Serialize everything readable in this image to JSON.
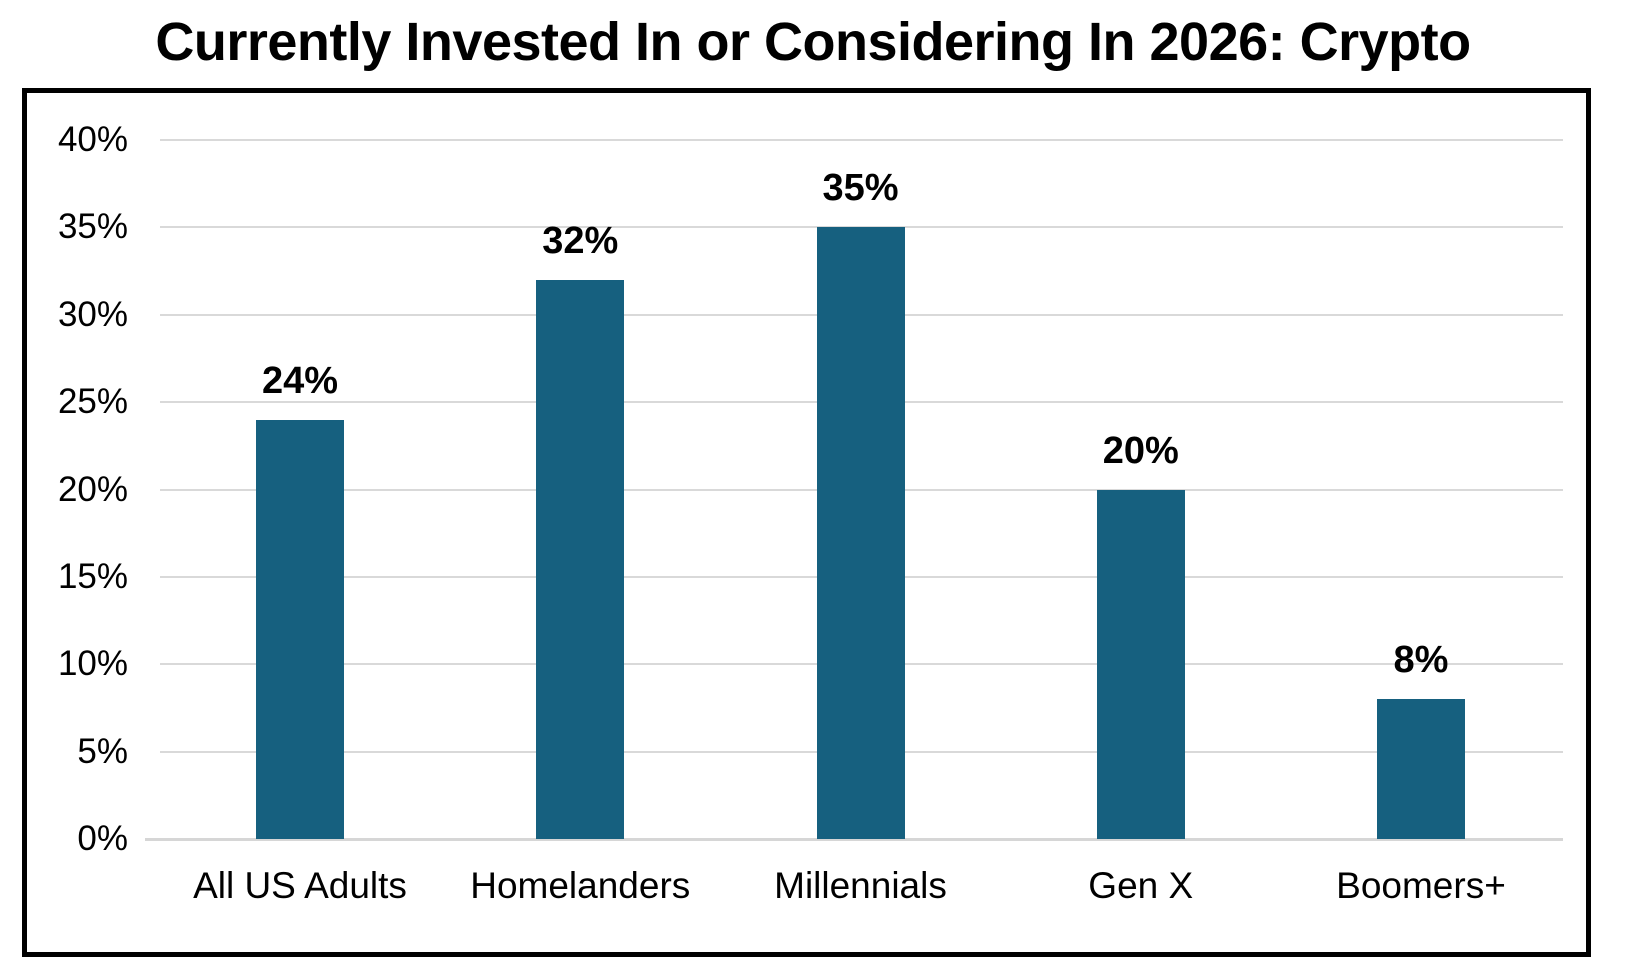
{
  "title": "Currently Invested In or Considering In 2026: Crypto",
  "chart_data": {
    "type": "bar",
    "title": "Currently Invested In or Considering In 2026: Crypto",
    "categories": [
      "All US Adults",
      "Homelanders",
      "Millennials",
      "Gen X",
      "Boomers+"
    ],
    "values": [
      24,
      32,
      35,
      20,
      8
    ],
    "value_labels": [
      "24%",
      "32%",
      "35%",
      "20%",
      "8%"
    ],
    "yticks": [
      0,
      5,
      10,
      15,
      20,
      25,
      30,
      35,
      40
    ],
    "ytick_labels": [
      "0%",
      "5%",
      "10%",
      "15%",
      "20%",
      "25%",
      "30%",
      "35%",
      "40%"
    ],
    "ylim": [
      0,
      40
    ],
    "xlabel": "",
    "ylabel": "",
    "grid": true,
    "legend": false,
    "colors": {
      "bar": "#16607F",
      "gridline": "#D9D9D9",
      "baseline": "#D6D6D6",
      "frame_border": "#000000",
      "text": "#000000",
      "background": "#FFFFFF"
    }
  }
}
